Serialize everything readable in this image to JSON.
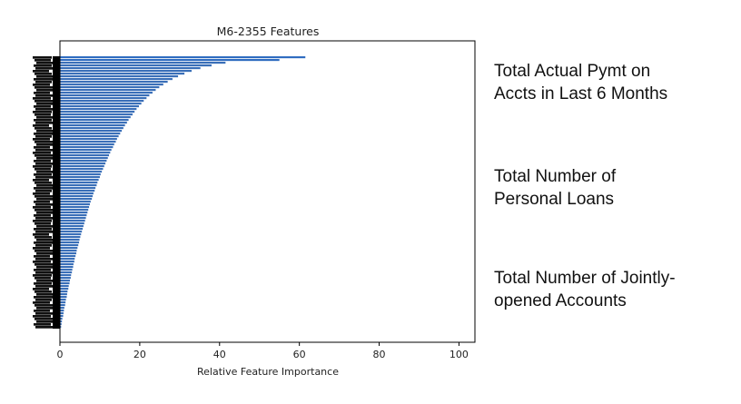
{
  "chart_data": {
    "type": "bar",
    "orientation": "horizontal",
    "title": "M6-2355 Features",
    "xlabel": "Relative Feature Importance",
    "ylabel": "",
    "xlim": [
      0,
      104
    ],
    "xticks": [
      0,
      20,
      40,
      60,
      80,
      100
    ],
    "grid": false,
    "legend": "none",
    "bar_color": "#3a6fb8",
    "y_tick_labels_legible": false,
    "n_bars_approx": 100,
    "values": [
      61.5,
      55.0,
      41.5,
      38.0,
      35.2,
      33.0,
      31.2,
      29.6,
      28.2,
      27.0,
      25.9,
      24.9,
      24.0,
      23.2,
      22.4,
      21.7,
      21.0,
      20.4,
      19.8,
      19.2,
      18.7,
      18.2,
      17.7,
      17.2,
      16.8,
      16.3,
      15.9,
      15.5,
      15.1,
      14.7,
      14.3,
      14.0,
      13.6,
      13.3,
      12.9,
      12.6,
      12.3,
      12.0,
      11.7,
      11.4,
      11.1,
      10.8,
      10.5,
      10.2,
      10.0,
      9.7,
      9.4,
      9.2,
      8.9,
      8.7,
      8.4,
      8.2,
      8.0,
      7.7,
      7.5,
      7.3,
      7.1,
      6.9,
      6.7,
      6.5,
      6.3,
      6.1,
      5.9,
      5.7,
      5.5,
      5.3,
      5.1,
      4.9,
      4.8,
      4.6,
      4.4,
      4.2,
      4.1,
      3.9,
      3.7,
      3.6,
      3.4,
      3.3,
      3.1,
      3.0,
      2.8,
      2.7,
      2.5,
      2.4,
      2.2,
      2.1,
      1.9,
      1.8,
      1.7,
      1.5,
      1.4,
      1.3,
      1.1,
      1.0,
      0.9,
      0.8,
      0.6,
      0.5,
      0.4,
      0.3
    ]
  },
  "annotations": [
    "Total Actual Pymt on\nAccts in Last 6 Months",
    "Total Number of\nPersonal Loans",
    "Total Number of Jointly-\nopened Accounts"
  ]
}
